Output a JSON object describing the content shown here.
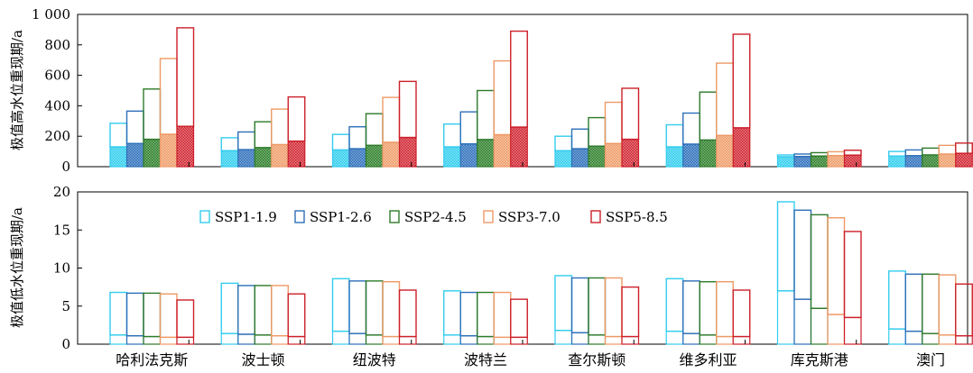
{
  "chart_data": [
    {
      "type": "bar",
      "ylabel": "极值高水位重现期/a",
      "ylim": [
        0,
        1000
      ],
      "yticks": [
        0,
        200,
        400,
        600,
        800,
        1000
      ],
      "ytick_labels": [
        "0",
        "200",
        "400",
        "600",
        "800",
        "1 000"
      ],
      "categories": [
        "哈利法克斯",
        "波士顿",
        "纽波特",
        "波特兰",
        "查尔斯顿",
        "维多利亚",
        "库克斯港",
        "澳门"
      ],
      "series": [
        {
          "name": "SSP1-1.9",
          "values": [
            285,
            190,
            212,
            280,
            200,
            275,
            77,
            100
          ],
          "lower_values": [
            130,
            105,
            110,
            130,
            105,
            130,
            65,
            70
          ]
        },
        {
          "name": "SSP1-2.6",
          "values": [
            365,
            228,
            262,
            360,
            247,
            352,
            83,
            110
          ],
          "lower_values": [
            152,
            112,
            118,
            150,
            118,
            148,
            67,
            72
          ]
        },
        {
          "name": "SSP2-4.5",
          "values": [
            510,
            295,
            348,
            500,
            322,
            490,
            92,
            122
          ],
          "lower_values": [
            180,
            125,
            140,
            178,
            135,
            175,
            70,
            77
          ]
        },
        {
          "name": "SSP3-7.0",
          "values": [
            710,
            378,
            455,
            695,
            423,
            680,
            98,
            140
          ],
          "lower_values": [
            213,
            145,
            160,
            210,
            152,
            205,
            73,
            83
          ]
        },
        {
          "name": "SSP5-8.5",
          "values": [
            912,
            458,
            560,
            890,
            515,
            870,
            108,
            155
          ],
          "lower_values": [
            265,
            168,
            192,
            260,
            180,
            255,
            76,
            88
          ]
        }
      ]
    },
    {
      "type": "bar",
      "ylabel": "极值低水位重现期/a",
      "ylim": [
        0,
        20
      ],
      "yticks": [
        0,
        5,
        10,
        15,
        20
      ],
      "ytick_labels": [
        "0",
        "5",
        "10",
        "15",
        "20"
      ],
      "categories": [
        "哈利法克斯",
        "波士顿",
        "纽波特",
        "波特兰",
        "查尔斯顿",
        "维多利亚",
        "库克斯港",
        "澳门"
      ],
      "legend_position": "top-left",
      "series": [
        {
          "name": "SSP1-1.9",
          "values": [
            6.8,
            8.0,
            8.6,
            7.0,
            9.0,
            8.6,
            18.7,
            9.6
          ],
          "lower_values": [
            1.2,
            1.4,
            1.7,
            1.2,
            1.8,
            1.7,
            7.0,
            2.0
          ]
        },
        {
          "name": "SSP1-2.6",
          "values": [
            6.7,
            7.7,
            8.3,
            6.8,
            8.7,
            8.3,
            17.6,
            9.2
          ],
          "lower_values": [
            1.1,
            1.3,
            1.4,
            1.1,
            1.5,
            1.4,
            5.9,
            1.7
          ]
        },
        {
          "name": "SSP2-4.5",
          "values": [
            6.7,
            7.7,
            8.3,
            6.8,
            8.7,
            8.2,
            17.0,
            9.2
          ],
          "lower_values": [
            1.0,
            1.2,
            1.2,
            1.0,
            1.2,
            1.2,
            4.7,
            1.4
          ]
        },
        {
          "name": "SSP3-7.0",
          "values": [
            6.6,
            7.7,
            8.2,
            6.8,
            8.7,
            8.2,
            16.6,
            9.1
          ],
          "lower_values": [
            0.9,
            1.1,
            1.0,
            0.9,
            1.0,
            1.0,
            3.9,
            1.2
          ]
        },
        {
          "name": "SSP5-8.5",
          "values": [
            5.8,
            6.6,
            7.1,
            5.9,
            7.5,
            7.1,
            14.8,
            7.9
          ],
          "lower_values": [
            0.9,
            1.0,
            1.0,
            0.9,
            1.0,
            1.0,
            3.5,
            1.1
          ]
        }
      ]
    }
  ],
  "colors": [
    "#33CCEE",
    "#2E6FB8",
    "#2D7A2A",
    "#EE9966",
    "#CC1F2A"
  ]
}
